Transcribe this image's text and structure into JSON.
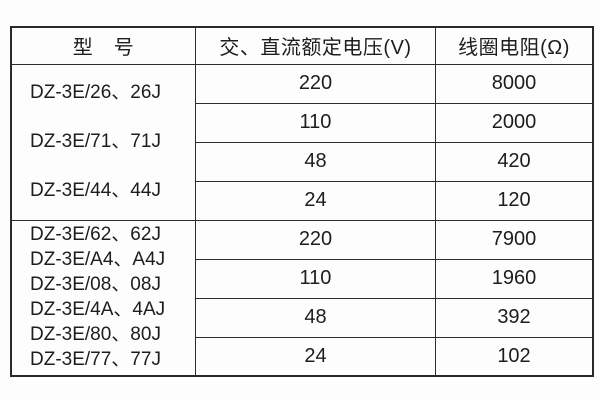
{
  "colors": {
    "background": "#fdfdfd",
    "border": "#2e2e2e",
    "text": "#1d1d1d"
  },
  "table": {
    "headers": {
      "model": "型　号",
      "voltage": "交、直流额定电压(V)",
      "resistance": "线圈电阻(Ω)"
    },
    "groups": [
      {
        "models": [
          "DZ-3E/26、26J",
          "DZ-3E/71、71J",
          "DZ-3E/44、44J"
        ],
        "rows": [
          {
            "voltage": "220",
            "resistance": "8000"
          },
          {
            "voltage": "110",
            "resistance": "2000"
          },
          {
            "voltage": "48",
            "resistance": "420"
          },
          {
            "voltage": "24",
            "resistance": "120"
          }
        ]
      },
      {
        "models": [
          "DZ-3E/62、62J",
          "DZ-3E/A4、A4J",
          "DZ-3E/08、08J",
          "DZ-3E/4A、4AJ",
          "DZ-3E/80、80J",
          "DZ-3E/77、77J"
        ],
        "rows": [
          {
            "voltage": "220",
            "resistance": "7900"
          },
          {
            "voltage": "110",
            "resistance": "1960"
          },
          {
            "voltage": "48",
            "resistance": "392"
          },
          {
            "voltage": "24",
            "resistance": "102"
          }
        ]
      }
    ]
  }
}
